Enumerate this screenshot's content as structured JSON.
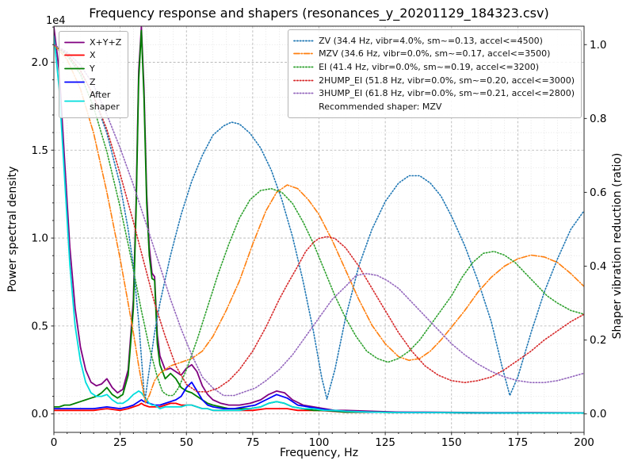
{
  "chart_data": {
    "type": "line",
    "title": "Frequency response and shapers (resonances_y_20201129_184323.csv)",
    "x_axis": {
      "label": "Frequency, Hz",
      "min": 0,
      "max": 200,
      "ticks": [
        0,
        25,
        50,
        75,
        100,
        125,
        150,
        175,
        200
      ],
      "tick_labels": [
        "0",
        "25",
        "50",
        "75",
        "100",
        "125",
        "150",
        "175",
        "200"
      ],
      "major_step": 25,
      "minor_step": 5
    },
    "y_left": {
      "label": "Power spectral density",
      "offset_text": "1e4",
      "min": -1050,
      "max": 22050,
      "ticks": [
        0,
        5000,
        10000,
        15000,
        20000
      ],
      "tick_labels": [
        "0.0",
        "0.5",
        "1.0",
        "1.5",
        "2.0"
      ],
      "major_step": 5000,
      "minor_step": 1000
    },
    "y_right": {
      "label": "Shaper vibration reduction (ratio)",
      "min": -0.05,
      "max": 1.05,
      "ticks": [
        0,
        0.2,
        0.4,
        0.6,
        0.8,
        1.0
      ],
      "tick_labels": [
        "0.0",
        "0.2",
        "0.4",
        "0.6",
        "0.8",
        "1.0"
      ],
      "major_step": 0.2,
      "minor_step": 0.05
    },
    "grid": {
      "on": true,
      "major_color": "#b0b0b0",
      "minor_color": "#dcdcdc"
    },
    "series": [
      {
        "id": "sum",
        "name": "X+Y+Z",
        "axis": "left",
        "color": "#800080",
        "linestyle": "solid",
        "x": [
          0,
          2,
          4,
          6,
          8,
          10,
          12,
          14,
          16,
          18,
          20,
          22,
          24,
          26,
          28,
          30,
          31,
          32,
          33,
          34,
          35,
          36,
          37,
          38,
          39,
          40,
          42,
          44,
          46,
          48,
          50,
          52,
          54,
          56,
          58,
          60,
          63,
          66,
          70,
          74,
          78,
          81,
          84,
          87,
          90,
          94,
          98,
          102,
          106,
          110,
          120,
          130,
          140,
          160,
          180,
          200
        ],
        "y": [
          22000,
          19500,
          14500,
          9500,
          6000,
          3800,
          2500,
          1800,
          1600,
          1700,
          2000,
          1500,
          1200,
          1400,
          2500,
          6500,
          12000,
          19500,
          22000,
          18500,
          12500,
          9500,
          8000,
          7800,
          4500,
          3300,
          2500,
          2600,
          2400,
          2200,
          2600,
          2800,
          2400,
          1600,
          1100,
          800,
          600,
          500,
          500,
          600,
          800,
          1100,
          1300,
          1200,
          800,
          500,
          400,
          300,
          200,
          200,
          150,
          100,
          100,
          80,
          70,
          60
        ]
      },
      {
        "id": "x",
        "name": "X",
        "axis": "left",
        "color": "#ff0000",
        "linestyle": "solid",
        "x": [
          0,
          5,
          10,
          15,
          20,
          25,
          28,
          30,
          32,
          33,
          34,
          36,
          38,
          40,
          42,
          44,
          46,
          48,
          50,
          52,
          54,
          56,
          58,
          60,
          65,
          70,
          75,
          80,
          84,
          88,
          92,
          96,
          100,
          110,
          120,
          140,
          160,
          180,
          200
        ],
        "y": [
          200,
          200,
          200,
          200,
          300,
          200,
          300,
          400,
          500,
          600,
          500,
          400,
          400,
          400,
          500,
          600,
          600,
          500,
          500,
          500,
          400,
          300,
          300,
          200,
          200,
          200,
          200,
          300,
          300,
          300,
          200,
          200,
          200,
          100,
          100,
          80,
          60,
          50,
          50
        ]
      },
      {
        "id": "y",
        "name": "Y",
        "axis": "left",
        "color": "#007f00",
        "linestyle": "solid",
        "x": [
          0,
          2,
          4,
          6,
          8,
          10,
          12,
          14,
          16,
          18,
          20,
          22,
          24,
          26,
          28,
          30,
          31,
          32,
          33,
          34,
          35,
          36,
          37,
          38,
          39,
          40,
          42,
          44,
          46,
          48,
          50,
          52,
          54,
          56,
          58,
          60,
          63,
          66,
          70,
          74,
          78,
          81,
          84,
          87,
          90,
          94,
          98,
          102,
          106,
          110,
          120,
          130,
          140,
          160,
          180,
          200
        ],
        "y": [
          400,
          400,
          500,
          500,
          600,
          700,
          800,
          900,
          1000,
          1200,
          1500,
          1100,
          900,
          1100,
          2200,
          6000,
          11500,
          19000,
          21800,
          18000,
          12000,
          9000,
          7700,
          7600,
          4000,
          2800,
          2000,
          2300,
          2000,
          1500,
          1300,
          1200,
          1000,
          800,
          600,
          500,
          400,
          300,
          300,
          300,
          400,
          600,
          700,
          600,
          400,
          300,
          200,
          200,
          150,
          100,
          100,
          80,
          80,
          60,
          50,
          50
        ]
      },
      {
        "id": "z",
        "name": "Z",
        "axis": "left",
        "color": "#0000ff",
        "linestyle": "solid",
        "x": [
          0,
          5,
          10,
          15,
          20,
          25,
          28,
          30,
          32,
          33,
          34,
          36,
          38,
          40,
          42,
          44,
          46,
          48,
          50,
          52,
          54,
          56,
          58,
          60,
          64,
          68,
          72,
          76,
          80,
          84,
          88,
          92,
          96,
          100,
          105,
          110,
          120,
          140,
          160,
          180,
          200
        ],
        "y": [
          300,
          300,
          300,
          300,
          400,
          300,
          400,
          500,
          700,
          800,
          700,
          600,
          500,
          500,
          600,
          700,
          800,
          1000,
          1500,
          1800,
          1300,
          800,
          500,
          400,
          300,
          300,
          400,
          500,
          800,
          1100,
          900,
          500,
          400,
          300,
          200,
          150,
          100,
          80,
          60,
          50,
          50
        ]
      },
      {
        "id": "after_shaper",
        "name": "After shaper",
        "axis": "left",
        "color": "#00dddd",
        "linestyle": "solid",
        "x": [
          0,
          2,
          4,
          6,
          8,
          10,
          12,
          14,
          16,
          18,
          20,
          22,
          24,
          26,
          28,
          30,
          31,
          32,
          33,
          34,
          35,
          36,
          37,
          38,
          39,
          40,
          42,
          44,
          46,
          48,
          50,
          52,
          54,
          56,
          58,
          60,
          63,
          66,
          70,
          74,
          78,
          81,
          84,
          87,
          90,
          94,
          98,
          102,
          106,
          110,
          120,
          130,
          140,
          160,
          180,
          200
        ],
        "y": [
          21500,
          18500,
          13500,
          8500,
          5000,
          3000,
          1800,
          1200,
          1000,
          1000,
          1100,
          800,
          600,
          600,
          800,
          1100,
          1200,
          1300,
          1200,
          1000,
          800,
          600,
          500,
          500,
          400,
          300,
          400,
          400,
          400,
          400,
          500,
          500,
          400,
          300,
          300,
          200,
          200,
          200,
          200,
          300,
          400,
          600,
          700,
          600,
          400,
          300,
          300,
          200,
          200,
          150,
          100,
          80,
          80,
          60,
          50,
          50
        ]
      },
      {
        "id": "zv",
        "name": "ZV",
        "axis": "right",
        "color": "#1f77b4",
        "linestyle": "dotted",
        "x": [
          0,
          5,
          10,
          15,
          20,
          25,
          28,
          30,
          32,
          34,
          34.4,
          36,
          38,
          40,
          44,
          48,
          52,
          56,
          60,
          64,
          67,
          70,
          74,
          78,
          82,
          86,
          90,
          94,
          98,
          101,
          103,
          106,
          110,
          115,
          120,
          125,
          130,
          134,
          138,
          142,
          146,
          150,
          155,
          160,
          165,
          169,
          172,
          175,
          180,
          185,
          190,
          195,
          200
        ],
        "y": [
          1.0,
          0.975,
          0.93,
          0.86,
          0.76,
          0.62,
          0.5,
          0.4,
          0.25,
          0.06,
          0.04,
          0.12,
          0.22,
          0.3,
          0.43,
          0.54,
          0.63,
          0.7,
          0.755,
          0.78,
          0.79,
          0.785,
          0.76,
          0.72,
          0.66,
          0.58,
          0.48,
          0.36,
          0.22,
          0.1,
          0.04,
          0.12,
          0.26,
          0.4,
          0.5,
          0.575,
          0.625,
          0.645,
          0.645,
          0.625,
          0.59,
          0.535,
          0.455,
          0.36,
          0.25,
          0.13,
          0.05,
          0.1,
          0.22,
          0.33,
          0.42,
          0.5,
          0.55
        ]
      },
      {
        "id": "mzv",
        "name": "MZV",
        "axis": "right",
        "color": "#ff7f0e",
        "linestyle": "dashdot",
        "x": [
          0,
          5,
          10,
          15,
          20,
          25,
          28,
          30,
          32,
          34,
          34.6,
          36,
          38,
          40,
          44,
          48,
          52,
          56,
          60,
          65,
          70,
          75,
          80,
          84,
          88,
          92,
          96,
          100,
          105,
          110,
          115,
          120,
          125,
          130,
          134,
          138,
          142,
          146,
          150,
          155,
          160,
          165,
          170,
          175,
          180,
          185,
          190,
          195,
          200
        ],
        "y": [
          1.0,
          0.96,
          0.88,
          0.76,
          0.6,
          0.42,
          0.3,
          0.22,
          0.13,
          0.05,
          0.03,
          0.05,
          0.09,
          0.11,
          0.13,
          0.14,
          0.15,
          0.17,
          0.21,
          0.28,
          0.36,
          0.46,
          0.55,
          0.6,
          0.62,
          0.61,
          0.58,
          0.54,
          0.47,
          0.39,
          0.31,
          0.24,
          0.19,
          0.155,
          0.145,
          0.15,
          0.17,
          0.2,
          0.235,
          0.28,
          0.33,
          0.37,
          0.4,
          0.42,
          0.43,
          0.425,
          0.41,
          0.38,
          0.345
        ]
      },
      {
        "id": "ei",
        "name": "EI",
        "axis": "right",
        "color": "#2ca02c",
        "linestyle": "dotted",
        "x": [
          0,
          5,
          10,
          15,
          20,
          25,
          28,
          30,
          33,
          36,
          39,
          41,
          43,
          45,
          47,
          50,
          54,
          58,
          62,
          66,
          70,
          74,
          78,
          82,
          86,
          90,
          94,
          98,
          102,
          106,
          110,
          114,
          118,
          122,
          126,
          130,
          134,
          138,
          142,
          146,
          150,
          154,
          158,
          162,
          166,
          170,
          174,
          178,
          182,
          186,
          190,
          195,
          200
        ],
        "y": [
          1.0,
          0.97,
          0.92,
          0.83,
          0.71,
          0.56,
          0.46,
          0.39,
          0.28,
          0.18,
          0.1,
          0.06,
          0.05,
          0.05,
          0.07,
          0.12,
          0.2,
          0.29,
          0.38,
          0.46,
          0.53,
          0.58,
          0.605,
          0.61,
          0.6,
          0.57,
          0.52,
          0.46,
          0.39,
          0.32,
          0.26,
          0.21,
          0.17,
          0.15,
          0.14,
          0.15,
          0.17,
          0.2,
          0.24,
          0.28,
          0.32,
          0.37,
          0.41,
          0.435,
          0.44,
          0.43,
          0.41,
          0.38,
          0.35,
          0.32,
          0.3,
          0.28,
          0.27
        ]
      },
      {
        "id": "2hump_ei",
        "name": "2HUMP_EI",
        "axis": "right",
        "color": "#d62728",
        "linestyle": "dotted",
        "x": [
          0,
          5,
          10,
          15,
          20,
          25,
          30,
          34,
          38,
          42,
          46,
          50,
          54,
          58,
          62,
          66,
          70,
          75,
          80,
          85,
          88,
          92,
          95,
          98,
          100,
          103,
          106,
          110,
          115,
          120,
          125,
          130,
          135,
          140,
          145,
          150,
          155,
          160,
          165,
          170,
          175,
          180,
          185,
          190,
          195,
          200
        ],
        "y": [
          1.0,
          0.975,
          0.93,
          0.86,
          0.77,
          0.65,
          0.52,
          0.41,
          0.3,
          0.21,
          0.13,
          0.08,
          0.06,
          0.06,
          0.07,
          0.09,
          0.12,
          0.17,
          0.235,
          0.31,
          0.35,
          0.4,
          0.44,
          0.465,
          0.475,
          0.48,
          0.475,
          0.45,
          0.4,
          0.34,
          0.28,
          0.22,
          0.17,
          0.13,
          0.105,
          0.09,
          0.085,
          0.09,
          0.1,
          0.12,
          0.145,
          0.17,
          0.2,
          0.225,
          0.25,
          0.27
        ]
      },
      {
        "id": "3hump_ei",
        "name": "3HUMP_EI",
        "axis": "right",
        "color": "#9467bd",
        "linestyle": "dotted",
        "x": [
          0,
          5,
          10,
          15,
          20,
          25,
          30,
          35,
          40,
          44,
          48,
          52,
          56,
          60,
          64,
          68,
          72,
          76,
          80,
          85,
          90,
          95,
          100,
          105,
          110,
          114,
          118,
          122,
          126,
          130,
          134,
          138,
          142,
          146,
          150,
          155,
          160,
          165,
          170,
          175,
          180,
          185,
          190,
          195,
          200
        ],
        "y": [
          1.0,
          0.98,
          0.945,
          0.89,
          0.81,
          0.72,
          0.62,
          0.51,
          0.4,
          0.31,
          0.23,
          0.16,
          0.1,
          0.07,
          0.05,
          0.05,
          0.06,
          0.07,
          0.09,
          0.12,
          0.16,
          0.21,
          0.26,
          0.31,
          0.345,
          0.375,
          0.38,
          0.375,
          0.36,
          0.34,
          0.31,
          0.28,
          0.25,
          0.22,
          0.19,
          0.16,
          0.135,
          0.115,
          0.1,
          0.09,
          0.085,
          0.085,
          0.09,
          0.1,
          0.11
        ]
      }
    ],
    "legends": {
      "psd": {
        "position": "upper-left",
        "items": [
          {
            "label": "X+Y+Z",
            "color": "#800080",
            "linestyle": "solid"
          },
          {
            "label": "X",
            "color": "#ff0000",
            "linestyle": "solid"
          },
          {
            "label": "Y",
            "color": "#007f00",
            "linestyle": "solid"
          },
          {
            "label": "Z",
            "color": "#0000ff",
            "linestyle": "solid"
          },
          {
            "label": "After\nshaper",
            "color": "#00dddd",
            "linestyle": "solid"
          }
        ]
      },
      "shapers": {
        "position": "upper-right",
        "items": [
          {
            "label": "ZV (34.4 Hz, vibr=4.0%, sm~=0.13, accel<=4500)",
            "color": "#1f77b4",
            "linestyle": "dotted"
          },
          {
            "label": "MZV (34.6 Hz, vibr=0.0%, sm~=0.17, accel<=3500)",
            "color": "#ff7f0e",
            "linestyle": "dashdot"
          },
          {
            "label": "EI (41.4 Hz, vibr=0.0%, sm~=0.19, accel<=3200)",
            "color": "#2ca02c",
            "linestyle": "dotted"
          },
          {
            "label": "2HUMP_EI (51.8 Hz, vibr=0.0%, sm~=0.20, accel<=3000)",
            "color": "#d62728",
            "linestyle": "dotted"
          },
          {
            "label": "3HUMP_EI (61.8 Hz, vibr=0.0%, sm~=0.21, accel<=2800)",
            "color": "#9467bd",
            "linestyle": "dotted"
          },
          {
            "label": "Recommended shaper: MZV",
            "color": null,
            "linestyle": "none"
          }
        ]
      }
    }
  }
}
